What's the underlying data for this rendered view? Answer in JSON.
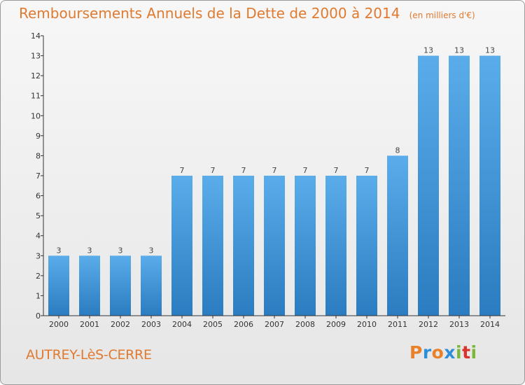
{
  "chart_data": {
    "type": "bar",
    "title": "Remboursements Annuels de la Dette de 2000 à 2014",
    "unit": "(en milliers d'€)",
    "categories": [
      "2000",
      "2001",
      "2002",
      "2003",
      "2004",
      "2005",
      "2006",
      "2007",
      "2008",
      "2009",
      "2010",
      "2011",
      "2012",
      "2013",
      "2014"
    ],
    "values": [
      3,
      3,
      3,
      3,
      7,
      7,
      7,
      7,
      7,
      7,
      7,
      8,
      13,
      13,
      13
    ],
    "ylim": [
      0,
      14
    ],
    "yticks": [
      0,
      1,
      2,
      3,
      4,
      5,
      6,
      7,
      8,
      9,
      10,
      11,
      12,
      13,
      14
    ],
    "grid": false,
    "bar_color_top": "#5aacea",
    "bar_color_bottom": "#2b7cc0"
  },
  "footer": {
    "commune": "AUTREY-LèS-CERRE",
    "brand": "Proxiti",
    "brand_colors": [
      "#e8812a",
      "#2f8ed8",
      "#e8812a",
      "#2f8ed8",
      "#7ab838",
      "#d9332c",
      "#7ab838"
    ]
  },
  "colors": {
    "accent": "#e07a2f",
    "axis": "#333333"
  }
}
